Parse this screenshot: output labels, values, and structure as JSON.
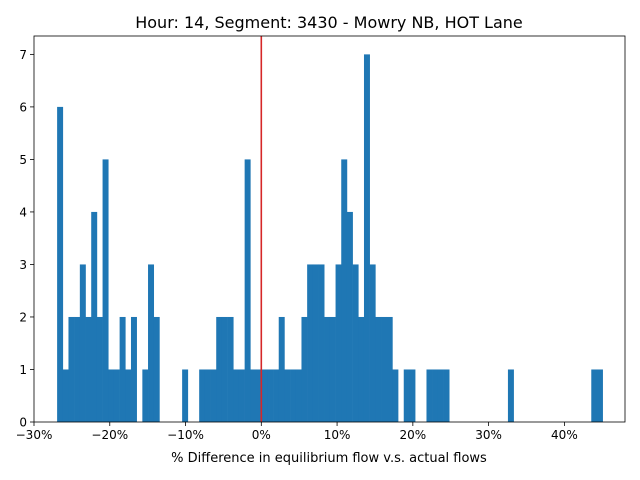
{
  "chart_data": {
    "type": "histogram",
    "title": "Hour: 14, Segment: 3430 - Mowry NB, HOT Lane",
    "xlabel": "% Difference in equilibrium flow v.s. actual flows",
    "ylabel": "",
    "xlim": [
      -0.3,
      0.48
    ],
    "ylim": [
      0,
      7.35
    ],
    "grid": false,
    "bin_width": 0.0075,
    "bar_color": "#1f77b4",
    "reference_line": {
      "x": 0,
      "color": "#d62728"
    },
    "x_ticks": [
      {
        "value": -0.3,
        "label": "−30%"
      },
      {
        "value": -0.2,
        "label": "−20%"
      },
      {
        "value": -0.1,
        "label": "−10%"
      },
      {
        "value": 0.0,
        "label": "0%"
      },
      {
        "value": 0.1,
        "label": "10%"
      },
      {
        "value": 0.2,
        "label": "20%"
      },
      {
        "value": 0.3,
        "label": "30%"
      },
      {
        "value": 0.4,
        "label": "40%"
      }
    ],
    "y_ticks": [
      {
        "value": 0,
        "label": "0"
      },
      {
        "value": 1,
        "label": "1"
      },
      {
        "value": 2,
        "label": "2"
      },
      {
        "value": 3,
        "label": "3"
      },
      {
        "value": 4,
        "label": "4"
      },
      {
        "value": 5,
        "label": "5"
      },
      {
        "value": 6,
        "label": "6"
      },
      {
        "value": 7,
        "label": "7"
      }
    ],
    "bins": [
      {
        "x0": -0.2695,
        "x1": -0.262,
        "value": 6
      },
      {
        "x0": -0.262,
        "x1": -0.2545,
        "value": 1
      },
      {
        "x0": -0.2545,
        "x1": -0.247,
        "value": 2
      },
      {
        "x0": -0.247,
        "x1": -0.2395,
        "value": 2
      },
      {
        "x0": -0.2395,
        "x1": -0.232,
        "value": 3
      },
      {
        "x0": -0.232,
        "x1": -0.2245,
        "value": 2
      },
      {
        "x0": -0.2245,
        "x1": -0.217,
        "value": 4
      },
      {
        "x0": -0.217,
        "x1": -0.2095,
        "value": 2
      },
      {
        "x0": -0.2095,
        "x1": -0.202,
        "value": 5
      },
      {
        "x0": -0.202,
        "x1": -0.1945,
        "value": 1
      },
      {
        "x0": -0.1945,
        "x1": -0.187,
        "value": 1
      },
      {
        "x0": -0.187,
        "x1": -0.1795,
        "value": 2
      },
      {
        "x0": -0.1795,
        "x1": -0.172,
        "value": 1
      },
      {
        "x0": -0.172,
        "x1": -0.1645,
        "value": 2
      },
      {
        "x0": -0.1645,
        "x1": -0.157,
        "value": 0
      },
      {
        "x0": -0.157,
        "x1": -0.1495,
        "value": 1
      },
      {
        "x0": -0.1495,
        "x1": -0.142,
        "value": 3
      },
      {
        "x0": -0.142,
        "x1": -0.1345,
        "value": 2
      },
      {
        "x0": -0.1045,
        "x1": -0.097,
        "value": 1
      },
      {
        "x0": -0.082,
        "x1": -0.0745,
        "value": 1
      },
      {
        "x0": -0.0745,
        "x1": -0.067,
        "value": 1
      },
      {
        "x0": -0.067,
        "x1": -0.0595,
        "value": 1
      },
      {
        "x0": -0.0595,
        "x1": -0.052,
        "value": 2
      },
      {
        "x0": -0.052,
        "x1": -0.0445,
        "value": 2
      },
      {
        "x0": -0.0445,
        "x1": -0.037,
        "value": 2
      },
      {
        "x0": -0.037,
        "x1": -0.0295,
        "value": 1
      },
      {
        "x0": -0.0295,
        "x1": -0.022,
        "value": 1
      },
      {
        "x0": -0.022,
        "x1": -0.0145,
        "value": 5
      },
      {
        "x0": -0.0145,
        "x1": -0.007,
        "value": 1
      },
      {
        "x0": -0.007,
        "x1": 0.0005,
        "value": 1
      },
      {
        "x0": 0.0005,
        "x1": 0.008,
        "value": 1
      },
      {
        "x0": 0.008,
        "x1": 0.0155,
        "value": 1
      },
      {
        "x0": 0.0155,
        "x1": 0.023,
        "value": 1
      },
      {
        "x0": 0.023,
        "x1": 0.0305,
        "value": 2
      },
      {
        "x0": 0.0305,
        "x1": 0.038,
        "value": 1
      },
      {
        "x0": 0.038,
        "x1": 0.0455,
        "value": 1
      },
      {
        "x0": 0.0455,
        "x1": 0.053,
        "value": 1
      },
      {
        "x0": 0.053,
        "x1": 0.0605,
        "value": 2
      },
      {
        "x0": 0.0605,
        "x1": 0.068,
        "value": 3
      },
      {
        "x0": 0.068,
        "x1": 0.0755,
        "value": 3
      },
      {
        "x0": 0.0755,
        "x1": 0.083,
        "value": 3
      },
      {
        "x0": 0.083,
        "x1": 0.0905,
        "value": 2
      },
      {
        "x0": 0.0905,
        "x1": 0.098,
        "value": 2
      },
      {
        "x0": 0.098,
        "x1": 0.1055,
        "value": 3
      },
      {
        "x0": 0.1055,
        "x1": 0.113,
        "value": 5
      },
      {
        "x0": 0.113,
        "x1": 0.1205,
        "value": 4
      },
      {
        "x0": 0.1205,
        "x1": 0.128,
        "value": 3
      },
      {
        "x0": 0.128,
        "x1": 0.1355,
        "value": 2
      },
      {
        "x0": 0.1355,
        "x1": 0.143,
        "value": 7
      },
      {
        "x0": 0.143,
        "x1": 0.1505,
        "value": 3
      },
      {
        "x0": 0.1505,
        "x1": 0.158,
        "value": 2
      },
      {
        "x0": 0.158,
        "x1": 0.1655,
        "value": 2
      },
      {
        "x0": 0.1655,
        "x1": 0.173,
        "value": 2
      },
      {
        "x0": 0.173,
        "x1": 0.1805,
        "value": 1
      },
      {
        "x0": 0.188,
        "x1": 0.1955,
        "value": 1
      },
      {
        "x0": 0.1955,
        "x1": 0.203,
        "value": 1
      },
      {
        "x0": 0.218,
        "x1": 0.2255,
        "value": 1
      },
      {
        "x0": 0.2255,
        "x1": 0.233,
        "value": 1
      },
      {
        "x0": 0.233,
        "x1": 0.2405,
        "value": 1
      },
      {
        "x0": 0.2405,
        "x1": 0.248,
        "value": 1
      },
      {
        "x0": 0.3255,
        "x1": 0.333,
        "value": 1
      },
      {
        "x0": 0.4355,
        "x1": 0.443,
        "value": 1
      },
      {
        "x0": 0.443,
        "x1": 0.4505,
        "value": 1
      }
    ]
  }
}
